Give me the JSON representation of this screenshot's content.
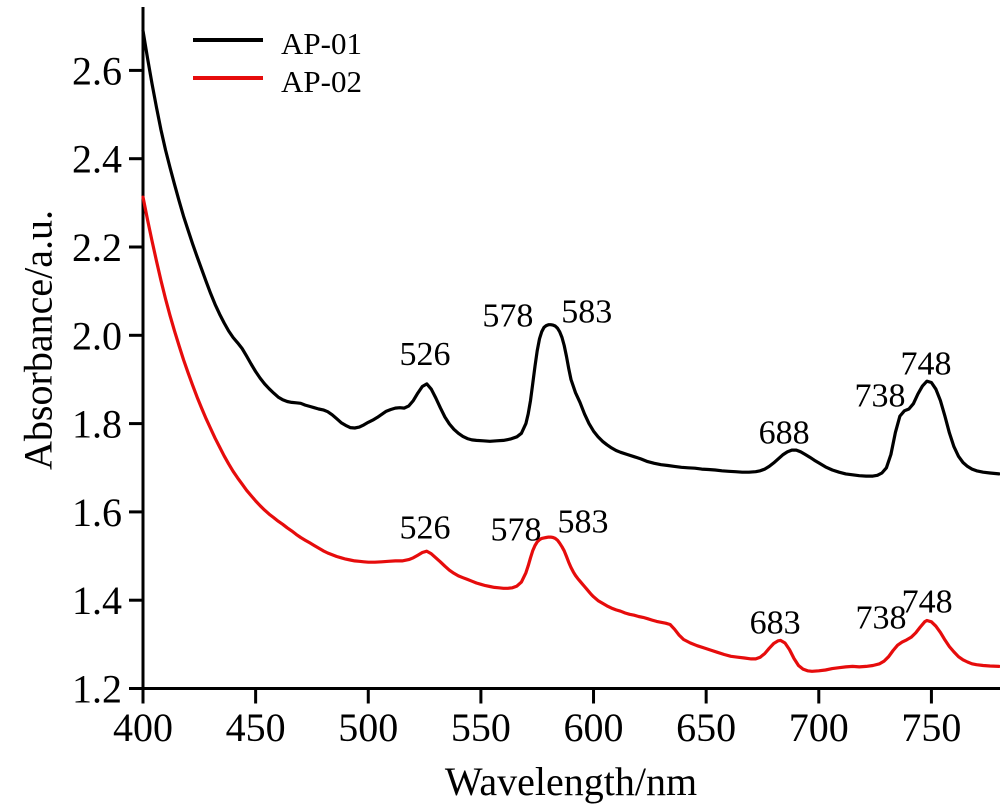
{
  "figure": {
    "background": "#ffffff",
    "axis_color": "#000000"
  },
  "legend": {
    "position": "top-left",
    "items": [
      {
        "label": "AP-01",
        "color": "#000000"
      },
      {
        "label": "AP-02",
        "color": "#e60c0c"
      }
    ]
  },
  "chart_data": {
    "type": "line",
    "title": "",
    "xlabel": "Wavelength/nm",
    "ylabel": "Absorbance/a.u.",
    "xlim": [
      400,
      780
    ],
    "ylim": [
      1.2,
      2.7
    ],
    "xticks": [
      400,
      450,
      500,
      550,
      600,
      650,
      700,
      750
    ],
    "yticks": [
      1.2,
      1.4,
      1.6,
      1.8,
      2.0,
      2.2,
      2.4,
      2.6
    ],
    "grid": false,
    "legend_position": "top-left",
    "series": [
      {
        "name": "AP-01",
        "color": "#000000",
        "x": [
          400,
          402,
          404,
          406,
          408,
          410,
          412,
          414,
          416,
          418,
          420,
          422,
          424,
          426,
          428,
          430,
          432,
          434,
          436,
          438,
          440,
          442,
          444,
          446,
          448,
          450,
          452,
          454,
          456,
          458,
          460,
          462,
          464,
          466,
          468,
          470,
          472,
          474,
          476,
          478,
          480,
          482,
          484,
          486,
          488,
          490,
          492,
          494,
          496,
          498,
          500,
          502,
          504,
          506,
          508,
          510,
          512,
          514,
          516,
          518,
          520,
          522,
          524,
          526,
          528,
          530,
          532,
          534,
          536,
          538,
          540,
          542,
          544,
          546,
          548,
          551,
          554,
          557,
          560,
          563,
          566,
          568,
          570,
          571,
          572,
          573,
          574,
          575,
          576,
          577,
          578,
          579,
          580,
          581,
          582,
          583,
          584,
          585,
          586,
          587,
          588,
          589,
          590,
          592,
          594,
          596,
          598,
          600,
          602,
          604,
          606,
          608,
          610,
          612,
          615,
          618,
          621,
          624,
          627,
          630,
          633,
          636,
          639,
          642,
          645,
          648,
          651,
          654,
          657,
          660,
          663,
          666,
          669,
          672,
          674,
          676,
          678,
          680,
          682,
          684,
          686,
          688,
          690,
          692,
          694,
          696,
          698,
          700,
          703,
          706,
          709,
          712,
          715,
          718,
          721,
          724,
          726,
          728,
          730,
          732,
          734,
          736,
          738,
          740,
          742,
          744,
          746,
          748,
          750,
          752,
          754,
          756,
          758,
          760,
          762,
          764,
          766,
          768,
          770,
          773,
          776,
          780
        ],
        "y": [
          2.69,
          2.628,
          2.57,
          2.516,
          2.465,
          2.42,
          2.38,
          2.342,
          2.305,
          2.27,
          2.238,
          2.207,
          2.178,
          2.15,
          2.122,
          2.095,
          2.07,
          2.048,
          2.028,
          2.01,
          1.995,
          1.983,
          1.97,
          1.953,
          1.935,
          1.918,
          1.903,
          1.89,
          1.879,
          1.869,
          1.86,
          1.854,
          1.85,
          1.848,
          1.847,
          1.846,
          1.842,
          1.839,
          1.836,
          1.833,
          1.831,
          1.827,
          1.82,
          1.811,
          1.802,
          1.796,
          1.791,
          1.79,
          1.792,
          1.797,
          1.803,
          1.808,
          1.814,
          1.821,
          1.828,
          1.832,
          1.835,
          1.836,
          1.835,
          1.84,
          1.852,
          1.869,
          1.884,
          1.89,
          1.878,
          1.858,
          1.836,
          1.815,
          1.799,
          1.787,
          1.778,
          1.771,
          1.766,
          1.763,
          1.762,
          1.761,
          1.76,
          1.761,
          1.762,
          1.765,
          1.77,
          1.778,
          1.8,
          1.822,
          1.852,
          1.89,
          1.93,
          1.965,
          1.992,
          2.008,
          2.018,
          2.022,
          2.024,
          2.024,
          2.023,
          2.021,
          2.016,
          2.008,
          1.995,
          1.977,
          1.952,
          1.925,
          1.9,
          1.87,
          1.848,
          1.822,
          1.8,
          1.783,
          1.77,
          1.76,
          1.752,
          1.745,
          1.739,
          1.735,
          1.73,
          1.725,
          1.72,
          1.714,
          1.71,
          1.707,
          1.705,
          1.703,
          1.701,
          1.7,
          1.699,
          1.697,
          1.696,
          1.695,
          1.693,
          1.692,
          1.691,
          1.69,
          1.69,
          1.691,
          1.693,
          1.697,
          1.703,
          1.711,
          1.72,
          1.729,
          1.736,
          1.74,
          1.74,
          1.736,
          1.73,
          1.724,
          1.717,
          1.711,
          1.702,
          1.695,
          1.69,
          1.686,
          1.684,
          1.682,
          1.681,
          1.681,
          1.683,
          1.688,
          1.7,
          1.73,
          1.78,
          1.817,
          1.829,
          1.833,
          1.845,
          1.867,
          1.885,
          1.896,
          1.893,
          1.878,
          1.852,
          1.817,
          1.779,
          1.748,
          1.726,
          1.712,
          1.703,
          1.697,
          1.693,
          1.69,
          1.688,
          1.686
        ],
        "annotations": [
          {
            "text": "526",
            "x": 525.2,
            "y": 1.96
          },
          {
            "text": "578",
            "x": 562.0,
            "y": 2.047
          },
          {
            "text": "583",
            "x": 597.0,
            "y": 2.056
          },
          {
            "text": "688",
            "x": 684.6,
            "y": 1.782
          },
          {
            "text": "738",
            "x": 727.2,
            "y": 1.866
          },
          {
            "text": "748",
            "x": 747.6,
            "y": 1.938
          }
        ]
      },
      {
        "name": "AP-02",
        "color": "#e60c0c",
        "x": [
          400,
          402,
          404,
          406,
          408,
          410,
          412,
          414,
          416,
          418,
          420,
          422,
          424,
          426,
          428,
          430,
          432,
          434,
          436,
          438,
          440,
          442,
          444,
          446,
          448,
          450,
          452,
          454,
          456,
          458,
          460,
          462,
          464,
          466,
          468,
          470,
          472,
          474,
          476,
          478,
          480,
          482,
          484,
          486,
          488,
          490,
          492,
          494,
          496,
          498,
          500,
          503,
          506,
          509,
          512,
          515,
          518,
          520,
          522,
          524,
          526,
          528,
          530,
          532,
          534,
          536,
          538,
          540,
          542,
          544,
          546,
          548,
          550,
          552,
          554,
          556,
          558,
          560,
          562,
          564,
          566,
          568,
          570,
          571,
          572,
          573,
          574,
          575,
          576,
          577,
          578,
          579,
          580,
          581,
          582,
          583,
          584,
          585,
          586,
          587,
          588,
          589,
          590,
          591,
          592,
          593,
          594,
          595,
          596,
          597,
          598,
          599,
          600,
          602,
          604,
          606,
          608,
          610,
          612,
          614,
          616,
          618,
          620,
          622,
          624,
          626,
          628,
          630,
          632,
          634,
          636,
          638,
          640,
          643,
          646,
          649,
          652,
          655,
          658,
          661,
          664,
          667,
          670,
          672,
          674,
          676,
          678,
          680,
          682,
          683,
          685,
          687,
          689,
          691,
          693,
          695,
          697,
          700,
          703,
          706,
          709,
          712,
          715,
          718,
          721,
          724,
          727,
          729,
          731,
          733,
          735,
          737,
          739,
          741,
          743,
          745,
          747,
          748,
          750,
          752,
          754,
          756,
          758,
          760,
          762,
          764,
          766,
          768,
          770,
          773,
          776,
          780
        ],
        "y": [
          2.313,
          2.262,
          2.214,
          2.168,
          2.124,
          2.083,
          2.045,
          2.01,
          1.977,
          1.945,
          1.915,
          1.887,
          1.86,
          1.835,
          1.811,
          1.789,
          1.767,
          1.747,
          1.727,
          1.709,
          1.692,
          1.677,
          1.663,
          1.649,
          1.637,
          1.625,
          1.614,
          1.604,
          1.595,
          1.587,
          1.579,
          1.572,
          1.564,
          1.557,
          1.549,
          1.542,
          1.536,
          1.53,
          1.524,
          1.518,
          1.512,
          1.507,
          1.503,
          1.499,
          1.496,
          1.493,
          1.491,
          1.489,
          1.488,
          1.487,
          1.486,
          1.486,
          1.487,
          1.488,
          1.489,
          1.489,
          1.492,
          1.496,
          1.502,
          1.508,
          1.511,
          1.505,
          1.496,
          1.487,
          1.477,
          1.468,
          1.461,
          1.455,
          1.451,
          1.447,
          1.443,
          1.439,
          1.436,
          1.433,
          1.431,
          1.429,
          1.428,
          1.427,
          1.427,
          1.428,
          1.432,
          1.441,
          1.462,
          1.478,
          1.496,
          1.512,
          1.524,
          1.532,
          1.537,
          1.54,
          1.541,
          1.542,
          1.543,
          1.543,
          1.542,
          1.54,
          1.536,
          1.529,
          1.521,
          1.512,
          1.499,
          1.486,
          1.474,
          1.464,
          1.456,
          1.449,
          1.443,
          1.437,
          1.431,
          1.425,
          1.419,
          1.413,
          1.408,
          1.399,
          1.393,
          1.387,
          1.382,
          1.378,
          1.375,
          1.371,
          1.368,
          1.366,
          1.363,
          1.361,
          1.358,
          1.355,
          1.352,
          1.35,
          1.348,
          1.345,
          1.334,
          1.321,
          1.311,
          1.303,
          1.297,
          1.292,
          1.287,
          1.282,
          1.277,
          1.273,
          1.271,
          1.269,
          1.267,
          1.267,
          1.271,
          1.279,
          1.291,
          1.302,
          1.308,
          1.309,
          1.303,
          1.288,
          1.268,
          1.252,
          1.244,
          1.24,
          1.239,
          1.24,
          1.242,
          1.245,
          1.247,
          1.249,
          1.25,
          1.249,
          1.25,
          1.252,
          1.256,
          1.262,
          1.272,
          1.286,
          1.298,
          1.305,
          1.31,
          1.316,
          1.326,
          1.339,
          1.351,
          1.354,
          1.351,
          1.341,
          1.327,
          1.31,
          1.295,
          1.283,
          1.272,
          1.265,
          1.26,
          1.256,
          1.254,
          1.252,
          1.251,
          1.25
        ],
        "annotations": [
          {
            "text": "526",
            "x": 525.2,
            "y": 1.567
          },
          {
            "text": "578",
            "x": 565.6,
            "y": 1.562
          },
          {
            "text": "583",
            "x": 595.3,
            "y": 1.58
          },
          {
            "text": "683",
            "x": 680.6,
            "y": 1.352
          },
          {
            "text": "738",
            "x": 727.6,
            "y": 1.363
          },
          {
            "text": "748",
            "x": 748.1,
            "y": 1.399
          }
        ]
      }
    ]
  }
}
